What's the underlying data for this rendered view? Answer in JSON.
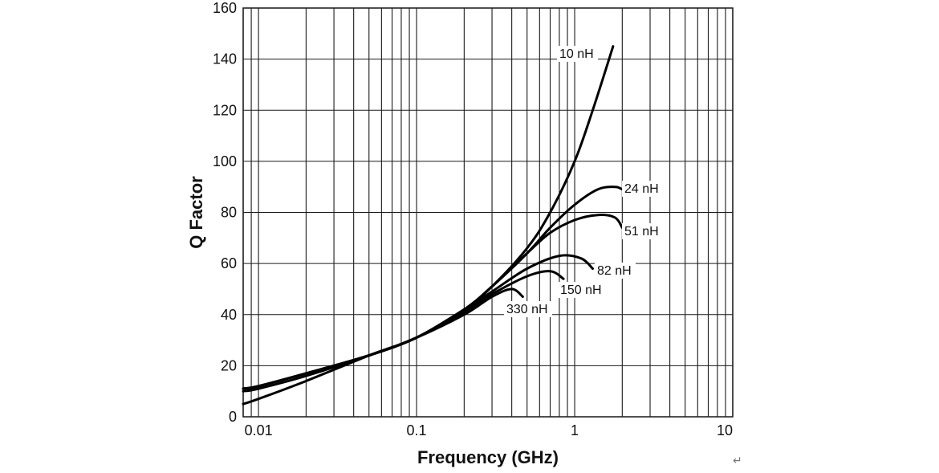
{
  "chart_data": {
    "type": "line",
    "title": "",
    "xlabel": "Frequency (GHz)",
    "ylabel": "Q Factor",
    "xscale": "log",
    "xlim": [
      0.008,
      10
    ],
    "ylim": [
      0,
      160
    ],
    "x_ticks": [
      {
        "value": 0.01,
        "label": "0.01"
      },
      {
        "value": 0.1,
        "label": "0.1"
      },
      {
        "value": 1,
        "label": "1"
      },
      {
        "value": 10,
        "label": "10"
      }
    ],
    "y_ticks": [
      {
        "value": 0,
        "label": "0"
      },
      {
        "value": 20,
        "label": "20"
      },
      {
        "value": 40,
        "label": "40"
      },
      {
        "value": 60,
        "label": "60"
      },
      {
        "value": 80,
        "label": "80"
      },
      {
        "value": 100,
        "label": "100"
      },
      {
        "value": 120,
        "label": "120"
      },
      {
        "value": 140,
        "label": "140"
      },
      {
        "value": 160,
        "label": "160"
      }
    ],
    "grid": true,
    "series": [
      {
        "name": "10 nH",
        "label": "10 nH",
        "x": [
          0.008,
          0.01,
          0.02,
          0.05,
          0.1,
          0.2,
          0.3,
          0.5,
          0.7,
          1.0,
          1.3,
          1.75
        ],
        "y": [
          5,
          7,
          14,
          24,
          31,
          42,
          51,
          66,
          80,
          100,
          120,
          145
        ]
      },
      {
        "name": "24 nH",
        "label": "24 nH",
        "x": [
          0.008,
          0.01,
          0.02,
          0.05,
          0.1,
          0.2,
          0.3,
          0.5,
          0.7,
          1.0,
          1.4,
          1.8,
          2.0
        ],
        "y": [
          10,
          11,
          16,
          24,
          31,
          42,
          51,
          64,
          74,
          83,
          89,
          90,
          89
        ]
      },
      {
        "name": "51 nH",
        "label": "51 nH",
        "x": [
          0.008,
          0.01,
          0.02,
          0.05,
          0.1,
          0.2,
          0.3,
          0.5,
          0.7,
          1.0,
          1.4,
          1.8,
          2.0
        ],
        "y": [
          11,
          12,
          17,
          24,
          31,
          42,
          51,
          64,
          72,
          77,
          79,
          78,
          74
        ]
      },
      {
        "name": "82 nH",
        "label": "82 nH",
        "x": [
          0.008,
          0.01,
          0.02,
          0.05,
          0.1,
          0.2,
          0.3,
          0.5,
          0.8,
          1.1,
          1.3
        ],
        "y": [
          11,
          12,
          17,
          24,
          31,
          42,
          49,
          58,
          63,
          62,
          58
        ]
      },
      {
        "name": "150 nH",
        "label": "150 nH",
        "x": [
          0.008,
          0.01,
          0.02,
          0.05,
          0.1,
          0.2,
          0.3,
          0.5,
          0.7,
          0.85
        ],
        "y": [
          11,
          12,
          17,
          24,
          31,
          41,
          48,
          55,
          57,
          54
        ]
      },
      {
        "name": "330 nH",
        "label": "330 nH",
        "x": [
          0.008,
          0.01,
          0.02,
          0.05,
          0.1,
          0.2,
          0.3,
          0.4,
          0.47
        ],
        "y": [
          11,
          12,
          17,
          24,
          31,
          40,
          47,
          50,
          47
        ]
      }
    ]
  }
}
